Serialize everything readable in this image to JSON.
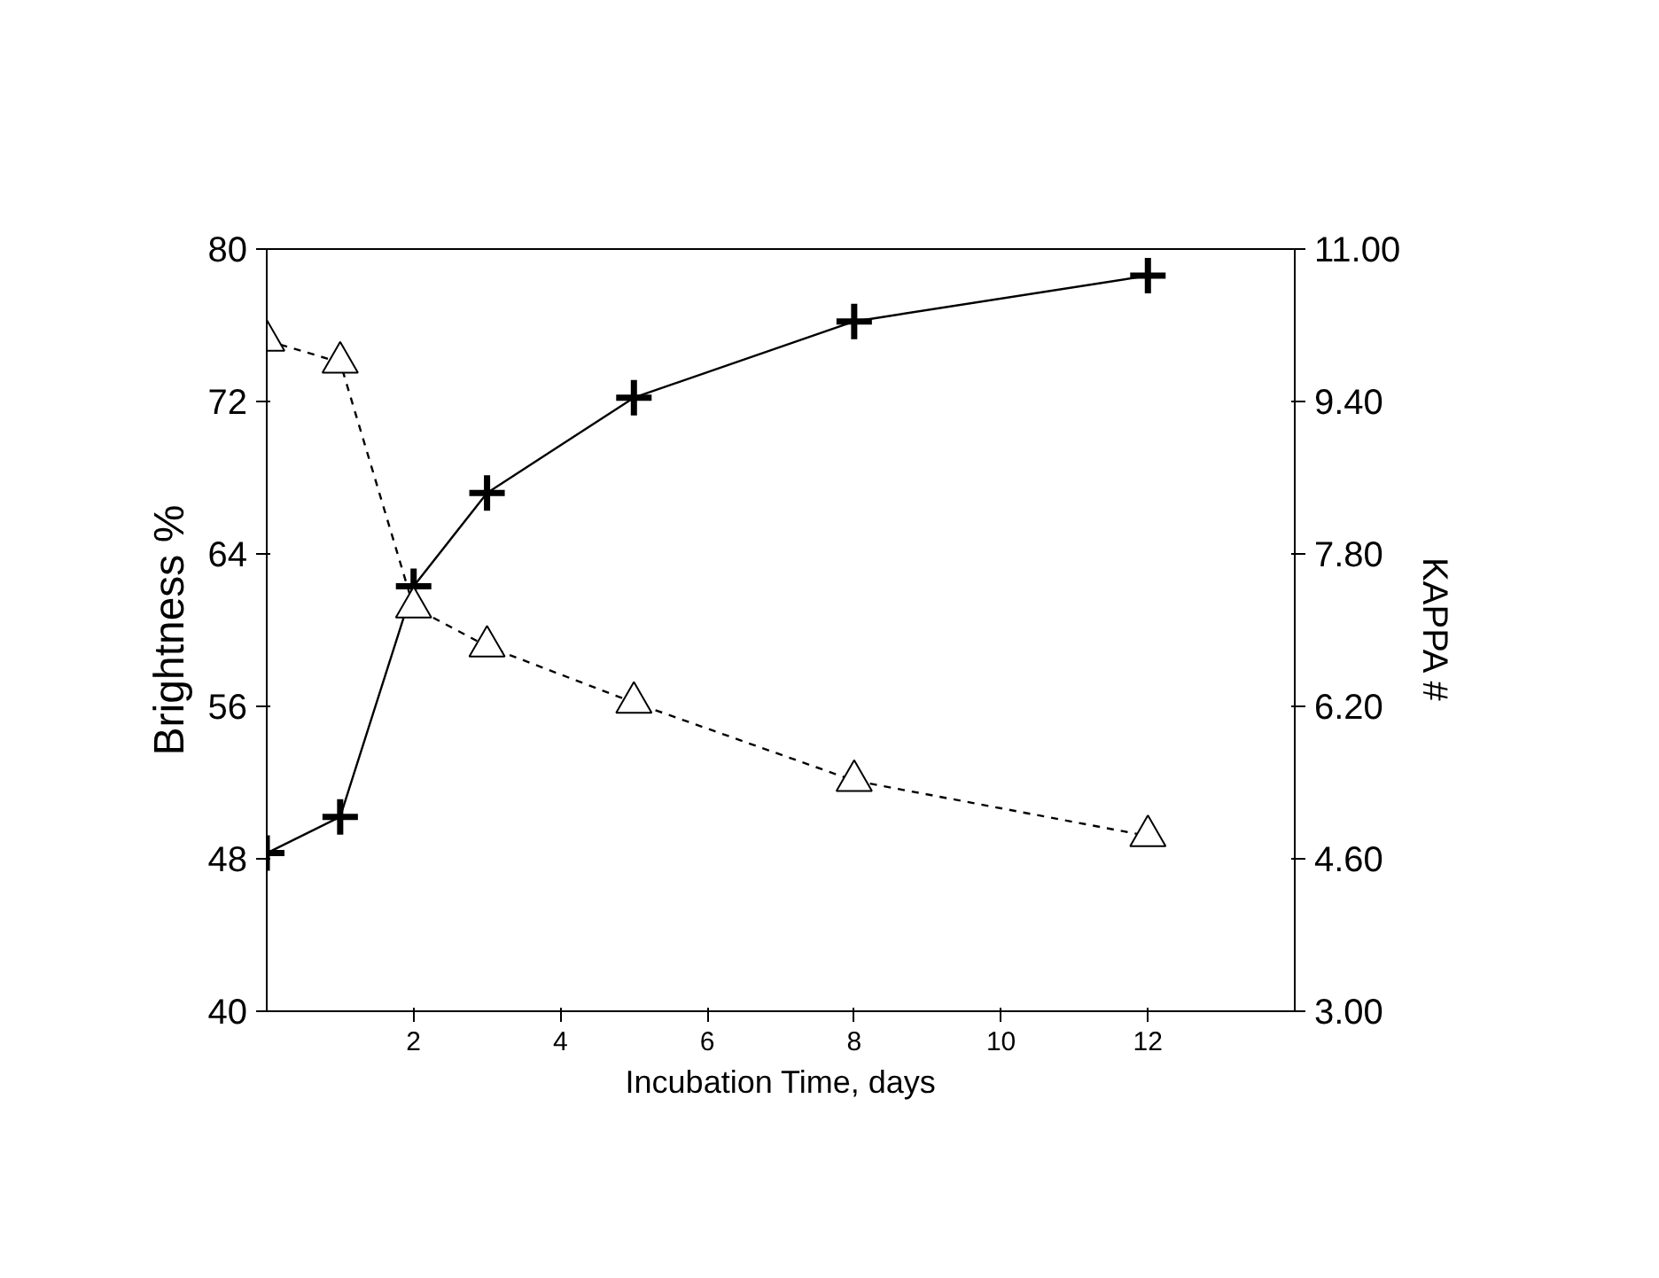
{
  "chart_data": {
    "type": "line",
    "xlabel": "Incubation Time, days",
    "ylabel": "Brightness %",
    "y2label": "KAPPA #",
    "xlim": [
      0,
      14
    ],
    "xticks": [
      2,
      4,
      6,
      8,
      10,
      12
    ],
    "ylim": [
      40,
      80
    ],
    "yticks": [
      40,
      48,
      56,
      64,
      72,
      80
    ],
    "y2lim": [
      3,
      11
    ],
    "y2ticks": [
      {
        "value": 3,
        "label": "3.00"
      },
      {
        "value": 4.6,
        "label": "4.60"
      },
      {
        "value": 6.2,
        "label": "6.20"
      },
      {
        "value": 7.8,
        "label": "7.80"
      },
      {
        "value": 9.4,
        "label": "9.40"
      },
      {
        "value": 11,
        "label": "11.00"
      }
    ],
    "grid": false,
    "series": [
      {
        "color": "#000000",
        "marker": "cross",
        "line_style": "solid",
        "x": [
          0,
          1,
          2,
          3,
          5,
          8,
          12
        ],
        "values": [
          48.3,
          50.2,
          62.3,
          67.2,
          72.2,
          76.2,
          78.6
        ]
      },
      {
        "color": "#000000",
        "marker": "triangle",
        "line_style": "dashed",
        "axis": "y2",
        "x": [
          0,
          1,
          2,
          3,
          5,
          8,
          12
        ],
        "values": [
          10.04,
          9.81,
          7.24,
          6.83,
          6.24,
          5.42,
          4.84
        ]
      }
    ]
  }
}
